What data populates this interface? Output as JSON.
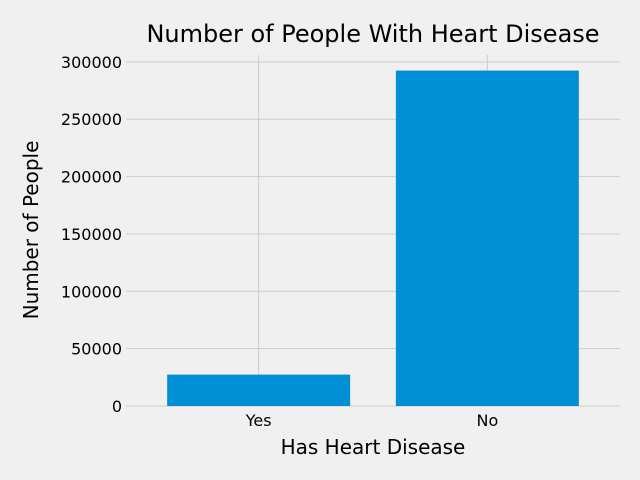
{
  "chart_data": {
    "type": "bar",
    "title": "Number of People With Heart Disease",
    "xlabel": "Has Heart Disease",
    "ylabel": "Number of People",
    "categories": [
      "Yes",
      "No"
    ],
    "values": [
      27373,
      292422
    ],
    "ylim": [
      0,
      306000
    ],
    "yticks": [
      0,
      50000,
      100000,
      150000,
      200000,
      250000,
      300000
    ],
    "ytick_labels": [
      "0",
      "50000",
      "100000",
      "150000",
      "200000",
      "250000",
      "300000"
    ],
    "grid": true,
    "bar_color": "#008fd5",
    "background": "#f0f0f0"
  }
}
